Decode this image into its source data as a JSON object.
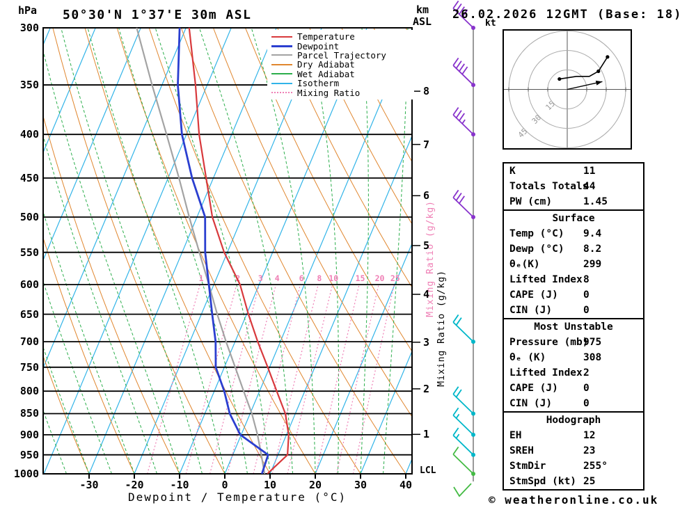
{
  "header": {
    "station_title": "50°30'N 1°37'E 30m ASL",
    "run_title": "26.02.2026 12GMT (Base: 18)",
    "pressure_unit": "hPa",
    "km_unit": "km",
    "asl": "ASL",
    "kt_label": "kt"
  },
  "axes": {
    "x_title": "Dewpoint / Temperature (°C)",
    "mixing_ratio_label": "Mixing Ratio (g/kg)",
    "mixing_ratio_label_pink": "Mixing Ratio (g/kg)",
    "lcl_label": "LCL"
  },
  "legend": {
    "items": [
      {
        "label": "Temperature",
        "color": "#d8393c",
        "style": "solid",
        "weight": 2.5
      },
      {
        "label": "Dewpoint",
        "color": "#2b3fd0",
        "style": "solid",
        "weight": 3.5
      },
      {
        "label": "Parcel Trajectory",
        "color": "#a3a3a3",
        "style": "solid",
        "weight": 2.5
      },
      {
        "label": "Dry Adiabat",
        "color": "#e0862e",
        "style": "solid",
        "weight": 2
      },
      {
        "label": "Wet Adiabat",
        "color": "#2bae4b",
        "style": "solid",
        "weight": 2
      },
      {
        "label": "Isotherm",
        "color": "#31b4e8",
        "style": "solid",
        "weight": 2
      },
      {
        "label": "Mixing Ratio",
        "color": "#ef7fb5",
        "style": "dotted",
        "weight": 2.5
      }
    ]
  },
  "colors": {
    "temperature": "#d8393c",
    "dewpoint": "#2b3fd0",
    "parcel": "#a3a3a3",
    "dry_adiabat": "#e0862e",
    "wet_adiabat": "#2bae4b",
    "isotherm": "#31b4e8",
    "mixing_ratio": "#ef7fb5",
    "grid": "#000000",
    "barb_high": "#8833cc",
    "barb_mid": "#00b7c9",
    "barb_low": "#44bb44",
    "station_line": "#999999"
  },
  "chart_data": {
    "type": "line",
    "title": "Skew-T log-P sounding 50°30'N 1°37'E 30m ASL 26.02.2026 12GMT",
    "xlabel": "Dewpoint / Temperature (°C)",
    "ylabel": "hPa",
    "pressure_range_hPa": [
      300,
      1000
    ],
    "temp_axis_range_C_at_1000hPa": [
      -40,
      41
    ],
    "pressure_levels": [
      300,
      350,
      400,
      450,
      500,
      550,
      600,
      650,
      700,
      750,
      800,
      850,
      900,
      950,
      1000
    ],
    "temp_ticks": [
      -30,
      -20,
      -10,
      0,
      10,
      20,
      30,
      40
    ],
    "km_asl_ticks": [
      1,
      2,
      3,
      4,
      5,
      6,
      7,
      8
    ],
    "isotherm_step_C": 10,
    "mixing_ratio_lines_g_per_kg": [
      1,
      2,
      3,
      4,
      6,
      8,
      10,
      15,
      20,
      25
    ],
    "series": [
      {
        "name": "Temperature",
        "units": "°C",
        "values": [
          -49.3,
          -42.6,
          -37.2,
          -31.6,
          -26.6,
          -20.7,
          -14.2,
          -9.6,
          -5.0,
          -0.4,
          3.8,
          7.8,
          10.5,
          12.1,
          9.4
        ]
      },
      {
        "name": "Dewpoint",
        "units": "°C",
        "values": [
          -51.4,
          -46.5,
          -41.0,
          -34.7,
          -28.2,
          -24.9,
          -21.1,
          -17.6,
          -14.3,
          -11.9,
          -7.8,
          -4.5,
          -0.2,
          7.8,
          8.2
        ]
      },
      {
        "name": "Parcel Trajectory",
        "units": "°C",
        "values": [
          -60.9,
          -52.2,
          -44.4,
          -37.6,
          -31.7,
          -26.2,
          -21.1,
          -16.5,
          -12.0,
          -7.6,
          -3.5,
          0.4,
          3.6,
          6.3,
          8.8
        ]
      }
    ]
  },
  "wind_barbs": [
    {
      "pressure_hPa": 300,
      "speed_kt": 40,
      "level": "high"
    },
    {
      "pressure_hPa": 350,
      "speed_kt": 40,
      "level": "high"
    },
    {
      "pressure_hPa": 400,
      "speed_kt": 35,
      "level": "high"
    },
    {
      "pressure_hPa": 500,
      "speed_kt": 30,
      "level": "high"
    },
    {
      "pressure_hPa": 700,
      "speed_kt": 20,
      "level": "mid"
    },
    {
      "pressure_hPa": 850,
      "speed_kt": 20,
      "level": "mid"
    },
    {
      "pressure_hPa": 900,
      "speed_kt": 15,
      "level": "mid"
    },
    {
      "pressure_hPa": 950,
      "speed_kt": 15,
      "level": "mid"
    },
    {
      "pressure_hPa": 1000,
      "speed_kt": 10,
      "level": "low"
    }
  ],
  "hodograph": {
    "unit": "kt",
    "rings_kt": [
      15,
      30,
      45
    ],
    "trace_kt": [
      [
        -6,
        8
      ],
      [
        7,
        10
      ],
      [
        17,
        10
      ],
      [
        24,
        14
      ],
      [
        31,
        25
      ]
    ],
    "dot_indices": [
      0,
      3,
      4
    ],
    "storm_vector_kt": [
      27,
      6
    ]
  },
  "stats": {
    "sections": [
      {
        "header": null,
        "rows": [
          {
            "label": "K",
            "value": "11"
          },
          {
            "label": "Totals Totals",
            "value": "44"
          },
          {
            "label": "PW (cm)",
            "value": "1.45"
          }
        ]
      },
      {
        "header": "Surface",
        "rows": [
          {
            "label": "Temp (°C)",
            "value": "9.4"
          },
          {
            "label": "Dewp (°C)",
            "value": "8.2"
          },
          {
            "label": "θₑ(K)",
            "value": "299"
          },
          {
            "label": "Lifted Index",
            "value": "8"
          },
          {
            "label": "CAPE (J)",
            "value": "0"
          },
          {
            "label": "CIN (J)",
            "value": "0"
          }
        ]
      },
      {
        "header": "Most Unstable",
        "rows": [
          {
            "label": "Pressure (mb)",
            "value": "975"
          },
          {
            "label": "θₑ (K)",
            "value": "308"
          },
          {
            "label": "Lifted Index",
            "value": "2"
          },
          {
            "label": "CAPE (J)",
            "value": "0"
          },
          {
            "label": "CIN (J)",
            "value": "0"
          }
        ]
      },
      {
        "header": "Hodograph",
        "rows": [
          {
            "label": "EH",
            "value": "12"
          },
          {
            "label": "SREH",
            "value": "23"
          },
          {
            "label": "StmDir",
            "value": "255°"
          },
          {
            "label": "StmSpd (kt)",
            "value": "25"
          }
        ]
      }
    ]
  },
  "footer": {
    "copyright": "© weatheronline.co.uk"
  }
}
